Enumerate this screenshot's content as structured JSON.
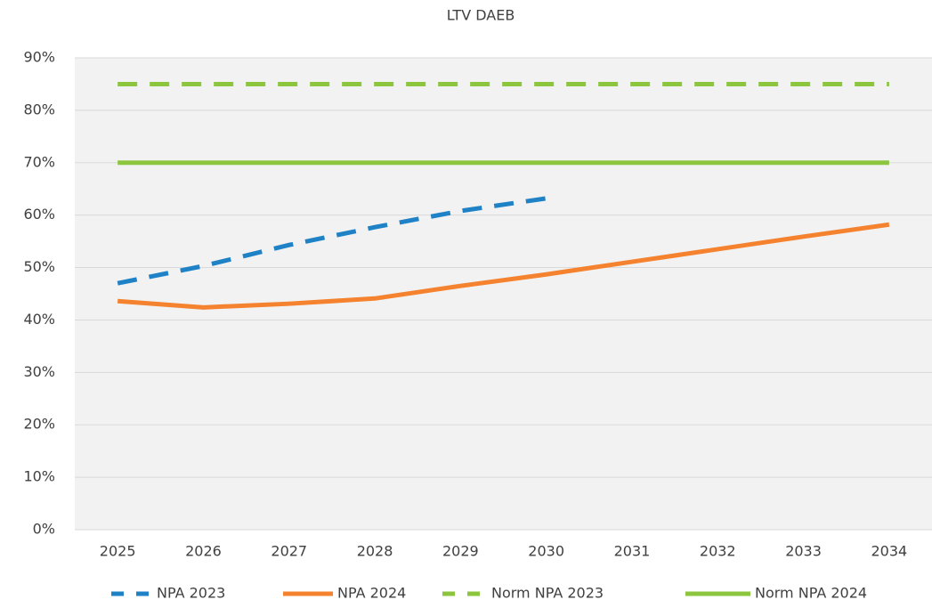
{
  "chart_data": {
    "type": "line",
    "title": "LTV DAEB",
    "categories": [
      "2025",
      "2026",
      "2027",
      "2028",
      "2029",
      "2030",
      "2031",
      "2032",
      "2033",
      "2034"
    ],
    "series": [
      {
        "name": "NPA 2023",
        "color": "#1f82c7",
        "dashed": true,
        "values": [
          47.0,
          50.3,
          54.3,
          57.7,
          60.8,
          63.2,
          null,
          null,
          null,
          null
        ]
      },
      {
        "name": "NPA 2024",
        "color": "#f5822e",
        "dashed": false,
        "values": [
          43.6,
          42.4,
          43.1,
          44.1,
          46.5,
          48.7,
          51.1,
          53.5,
          55.9,
          58.2
        ]
      },
      {
        "name": "Norm NPA 2023",
        "color": "#8cc63f",
        "dashed": true,
        "values": [
          85,
          85,
          85,
          85,
          85,
          85,
          85,
          85,
          85,
          85
        ]
      },
      {
        "name": "Norm NPA 2024",
        "color": "#8cc63f",
        "dashed": false,
        "values": [
          70,
          70,
          70,
          70,
          70,
          70,
          70,
          70,
          70,
          70
        ]
      }
    ],
    "ylim": [
      0,
      90
    ],
    "yticks": [
      {
        "value": 0,
        "label": "0%"
      },
      {
        "value": 10,
        "label": "10%"
      },
      {
        "value": 20,
        "label": "20%"
      },
      {
        "value": 30,
        "label": "30%"
      },
      {
        "value": 40,
        "label": "40%"
      },
      {
        "value": 50,
        "label": "50%"
      },
      {
        "value": 60,
        "label": "60%"
      },
      {
        "value": 70,
        "label": "70%"
      },
      {
        "value": 80,
        "label": "80%"
      },
      {
        "value": 90,
        "label": "90%"
      }
    ],
    "grid": true,
    "legend": "bottom"
  }
}
